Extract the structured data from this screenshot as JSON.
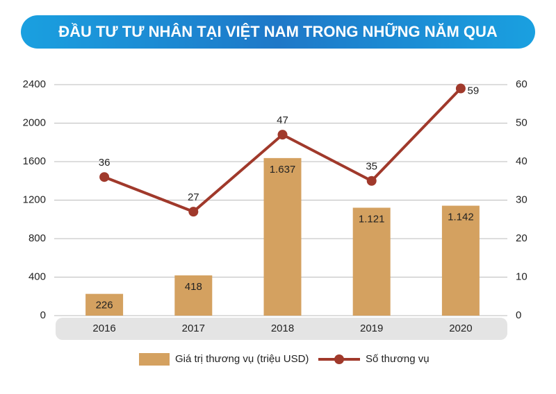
{
  "chart_data": {
    "type": "combo",
    "title": "ĐẦU TƯ TƯ NHÂN TẠI VIỆT NAM TRONG NHỮNG NĂM QUA",
    "categories": [
      "2016",
      "2017",
      "2018",
      "2019",
      "2020"
    ],
    "series": [
      {
        "name": "Giá trị thương vụ (triệu USD)",
        "type": "bar",
        "color": "#d4a160",
        "values": [
          226,
          418,
          1637,
          1121,
          1142
        ],
        "value_labels": [
          "226",
          "418",
          "1.637",
          "1.121",
          "1.142"
        ]
      },
      {
        "name": "Số thương vụ",
        "type": "line",
        "axis": "y2",
        "color": "#a0392b",
        "values": [
          36,
          27,
          47,
          35,
          59
        ]
      }
    ],
    "ylim": [
      0,
      2400
    ],
    "yticks": [
      0,
      400,
      800,
      1200,
      1600,
      2000,
      2400
    ],
    "y2lim": [
      0,
      60
    ],
    "y2ticks": [
      0,
      10,
      20,
      30,
      40,
      50,
      60
    ],
    "grid": true
  }
}
